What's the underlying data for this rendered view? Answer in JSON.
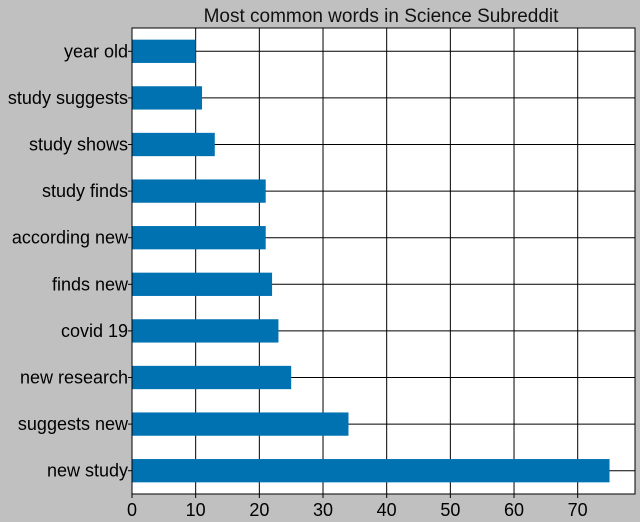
{
  "chart_data": {
    "type": "bar",
    "orientation": "horizontal",
    "title": "Most common words in Science Subreddit",
    "xlabel": "",
    "ylabel": "",
    "categories": [
      "year old",
      "study suggests",
      "study shows",
      "study finds",
      "according new",
      "finds new",
      "covid 19",
      "new research",
      "suggests new",
      "new study"
    ],
    "values": [
      10,
      11,
      13,
      21,
      21,
      22,
      23,
      25,
      34,
      75
    ],
    "xlim": [
      0,
      79
    ],
    "xticks": [
      0,
      10,
      20,
      30,
      40,
      50,
      60,
      70
    ],
    "grid": true,
    "bar_color": "#0072b2",
    "background_color": "#c0c0c0",
    "plot_background_color": "#ffffff"
  }
}
